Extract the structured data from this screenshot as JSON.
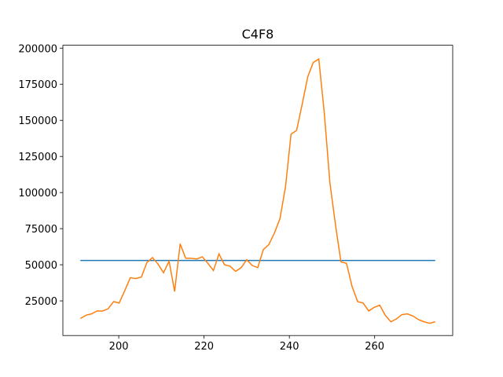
{
  "chart_data": {
    "type": "line",
    "title": "C4F8",
    "xlim": [
      186.9,
      278.3
    ],
    "ylim": [
      1000,
      202000
    ],
    "xticks": [
      200,
      220,
      240,
      260
    ],
    "yticks": [
      25000,
      50000,
      75000,
      100000,
      125000,
      150000,
      175000,
      200000
    ],
    "series": [
      {
        "color": "#1f77b4",
        "x": [
          191.0,
          274.2
        ],
        "values": [
          53000,
          53000
        ]
      },
      {
        "color": "#ff7f0e",
        "x": [
          191.0,
          192.3,
          193.6,
          194.9,
          196.2,
          197.5,
          198.8,
          200.1,
          201.4,
          202.7,
          204.0,
          205.3,
          206.6,
          207.9,
          209.2,
          210.5,
          211.8,
          213.1,
          214.4,
          215.7,
          217.0,
          218.3,
          219.6,
          220.9,
          222.2,
          223.5,
          224.8,
          226.1,
          227.4,
          228.7,
          230.0,
          231.3,
          232.6,
          233.9,
          235.2,
          236.5,
          237.8,
          239.1,
          240.4,
          241.7,
          243.0,
          244.3,
          245.6,
          246.9,
          248.2,
          249.5,
          250.8,
          252.1,
          253.4,
          254.7,
          256.0,
          257.3,
          258.6,
          259.9,
          261.2,
          262.5,
          263.8,
          265.1,
          266.4,
          267.7,
          269.0,
          270.3,
          271.6,
          272.9,
          274.2
        ],
        "values": [
          12800,
          15000,
          16000,
          18000,
          18000,
          19500,
          24500,
          23500,
          32000,
          41000,
          40500,
          41500,
          51500,
          55000,
          50500,
          44500,
          52500,
          31500,
          64500,
          54500,
          54500,
          54000,
          55500,
          51000,
          46000,
          57500,
          50000,
          49000,
          45500,
          48000,
          53500,
          49500,
          48000,
          60500,
          64000,
          72000,
          82000,
          104000,
          140500,
          143000,
          161000,
          180000,
          190000,
          192500,
          155000,
          107000,
          78000,
          52000,
          51000,
          35000,
          24500,
          23500,
          18000,
          20500,
          22000,
          15000,
          10500,
          12500,
          15500,
          16000,
          14500,
          12000,
          10500,
          9500,
          10500
        ]
      }
    ]
  }
}
